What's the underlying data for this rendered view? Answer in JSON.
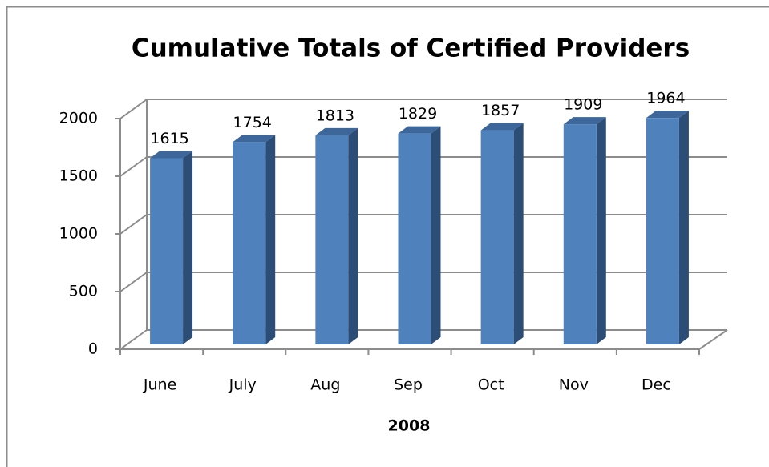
{
  "chart_data": {
    "type": "bar3d",
    "title": "Cumulative Totals of Certified Providers",
    "x_label": "2008",
    "categories": [
      "June",
      "July",
      "Aug",
      "Sep",
      "Oct",
      "Nov",
      "Dec"
    ],
    "values": [
      1615,
      1754,
      1813,
      1829,
      1857,
      1909,
      1964
    ],
    "color": "#4f81bd",
    "ylim": [
      0,
      2000
    ],
    "yticks": [
      0,
      500,
      1000,
      1500,
      2000
    ],
    "grid": true
  }
}
